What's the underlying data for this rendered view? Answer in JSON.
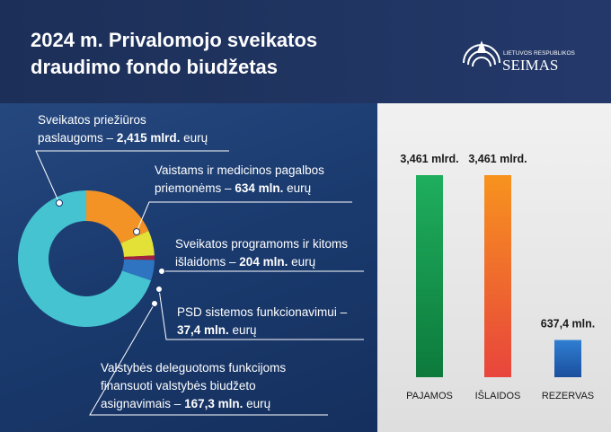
{
  "header": {
    "title": "2024 m. Privalomojo sveikatos\ndraudimo fondo biudžetas",
    "logo_small": "LIETUVOS RESPUBLIKOS",
    "logo_large": "SEIMAS"
  },
  "chart_data": [
    {
      "type": "pie",
      "categories": [
        "Sveikatos priežiūros\npaslaugoms –",
        "Vaistams ir medicinos pagalbos\npriemonėms –",
        "Sveikatos programoms ir kitoms\nišlaidoms –",
        "PSD sistemos funkcionavimui –",
        "Valstybės deleguotoms funkcijoms\nfinansuoti valstybės biudžeto\nasignavimais –"
      ],
      "values": [
        2415,
        634,
        204,
        37.4,
        167.3
      ],
      "value_labels": [
        "2,415 mlrd.",
        "634 mln.",
        "204 mln.",
        "37,4 mln.",
        "167,3 mln."
      ],
      "unit": "eurų",
      "colors": [
        "#45c3d1",
        "#f39325",
        "#e3e137",
        "#a3213c",
        "#2f74c0"
      ]
    },
    {
      "type": "bar",
      "categories": [
        "PAJAMOS",
        "IŠLAIDOS",
        "REZERVAS"
      ],
      "values": [
        3461,
        3461,
        637.4
      ],
      "value_labels": [
        "3,461 mlrd.",
        "3,461 mlrd.",
        "637,4 mln."
      ],
      "colors": [
        [
          "#1fae5e",
          "#0d7a3c"
        ],
        [
          "#f7931e",
          "#e8453c"
        ],
        [
          "#2f7fd2",
          "#1b4f9e"
        ]
      ]
    }
  ]
}
